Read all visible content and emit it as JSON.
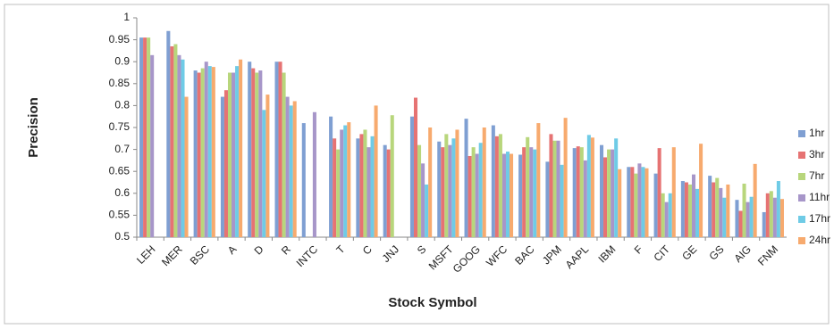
{
  "chart_data": {
    "type": "bar",
    "x_label": "Stock Symbol",
    "y_label": "Precision",
    "categories": [
      "LEH",
      "MER",
      "BSC",
      "A",
      "D",
      "R",
      "INTC",
      "T",
      "C",
      "JNJ",
      "S",
      "MSFT",
      "GOOG",
      "WFC",
      "BAC",
      "JPM",
      "AAPL",
      "IBM",
      "F",
      "CIT",
      "GE",
      "GS",
      "AIG",
      "FNM"
    ],
    "series": [
      {
        "name": "1hr",
        "color": "#7f9fd2",
        "values": [
          0.955,
          0.97,
          0.88,
          0.82,
          0.9,
          0.9,
          0.76,
          0.775,
          0.725,
          0.71,
          0.775,
          0.718,
          0.77,
          0.755,
          0.688,
          0.672,
          0.703,
          0.71,
          0.66,
          0.645,
          0.628,
          0.64,
          0.585,
          0.557
        ]
      },
      {
        "name": "3hr",
        "color": "#e67373",
        "values": [
          0.955,
          0.935,
          0.875,
          0.835,
          0.885,
          0.9,
          null,
          0.725,
          0.735,
          0.7,
          0.818,
          0.705,
          0.685,
          0.73,
          0.705,
          0.735,
          0.707,
          0.682,
          0.66,
          0.703,
          0.625,
          0.625,
          0.56,
          0.6
        ]
      },
      {
        "name": "7hr",
        "color": "#b8d67c",
        "values": [
          0.955,
          0.94,
          0.885,
          0.875,
          0.875,
          0.875,
          null,
          0.7,
          0.745,
          0.778,
          0.71,
          0.735,
          0.705,
          0.735,
          0.728,
          0.72,
          0.705,
          0.7,
          0.645,
          0.6,
          0.62,
          0.635,
          0.622,
          0.605
        ]
      },
      {
        "name": "11hr",
        "color": "#a796c9",
        "values": [
          0.915,
          0.915,
          0.9,
          0.875,
          0.88,
          0.82,
          0.785,
          0.745,
          0.705,
          null,
          0.668,
          0.71,
          0.69,
          0.69,
          0.705,
          0.72,
          0.675,
          0.7,
          0.668,
          0.58,
          0.643,
          0.612,
          0.58,
          0.59
        ]
      },
      {
        "name": "17hr",
        "color": "#6fcbe6",
        "values": [
          null,
          0.905,
          0.89,
          0.89,
          0.79,
          0.8,
          null,
          0.755,
          0.73,
          null,
          0.62,
          0.725,
          0.715,
          0.695,
          0.7,
          0.665,
          0.733,
          0.725,
          0.66,
          0.6,
          0.61,
          0.59,
          0.592,
          0.628
        ]
      },
      {
        "name": "24hr",
        "color": "#f7aa6e",
        "values": [
          null,
          0.82,
          0.888,
          0.905,
          0.825,
          0.81,
          null,
          0.762,
          0.8,
          null,
          0.75,
          0.745,
          0.75,
          0.69,
          0.76,
          0.772,
          0.727,
          0.655,
          0.657,
          0.705,
          0.713,
          0.62,
          0.667,
          0.587
        ]
      }
    ],
    "ylim": [
      0.5,
      1
    ],
    "yticks": [
      0.5,
      0.55,
      0.6,
      0.65,
      0.7,
      0.75,
      0.8,
      0.85,
      0.9,
      0.95,
      1
    ],
    "grid": false,
    "legend": "right"
  }
}
